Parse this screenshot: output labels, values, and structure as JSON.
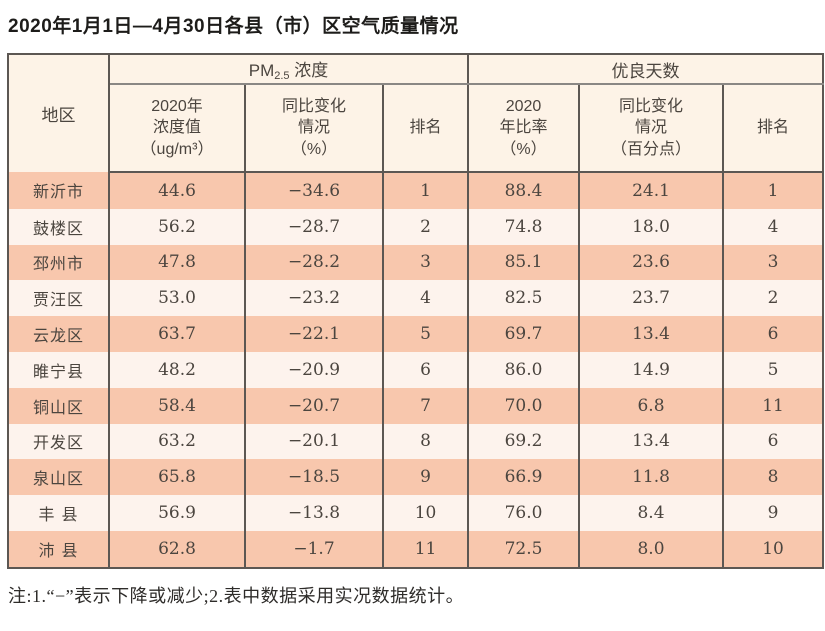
{
  "page": {
    "title": "2020年1月1日—4月30日各县（市）区空气质量情况",
    "note": "注:1.“−”表示下降或减少;2.表中数据采用实况数据统计。"
  },
  "colors": {
    "border": "#5c5753",
    "group_rule": "#8a8784",
    "stripe": "#f8c7ad",
    "stripe_light": "#fdf3ed",
    "header_bg": "#fdf3e7",
    "text": "#4b453f",
    "title_color": "#1d1c1a"
  },
  "table": {
    "corner_header": "地区",
    "pm_group": {
      "prefix": "PM",
      "sub": "2.5",
      "suffix": " 浓度"
    },
    "days_group_label": "优良天数",
    "columns": [
      "2020年\n浓度值\n（ug/m³）",
      "同比变化\n情况\n（%）",
      "排名",
      "2020\n年比率\n（%）",
      "同比变化\n情况\n（百分点）",
      "排名"
    ],
    "rows": [
      {
        "region": "新沂市",
        "pm_value": "44.6",
        "pm_change": "−34.6",
        "pm_rank": "1",
        "days_rate": "88.4",
        "days_change": "24.1",
        "days_rank": "1"
      },
      {
        "region": "鼓楼区",
        "pm_value": "56.2",
        "pm_change": "−28.7",
        "pm_rank": "2",
        "days_rate": "74.8",
        "days_change": "18.0",
        "days_rank": "4"
      },
      {
        "region": "邳州市",
        "pm_value": "47.8",
        "pm_change": "−28.2",
        "pm_rank": "3",
        "days_rate": "85.1",
        "days_change": "23.6",
        "days_rank": "3"
      },
      {
        "region": "贾汪区",
        "pm_value": "53.0",
        "pm_change": "−23.2",
        "pm_rank": "4",
        "days_rate": "82.5",
        "days_change": "23.7",
        "days_rank": "2"
      },
      {
        "region": "云龙区",
        "pm_value": "63.7",
        "pm_change": "−22.1",
        "pm_rank": "5",
        "days_rate": "69.7",
        "days_change": "13.4",
        "days_rank": "6"
      },
      {
        "region": "睢宁县",
        "pm_value": "48.2",
        "pm_change": "−20.9",
        "pm_rank": "6",
        "days_rate": "86.0",
        "days_change": "14.9",
        "days_rank": "5"
      },
      {
        "region": "铜山区",
        "pm_value": "58.4",
        "pm_change": "−20.7",
        "pm_rank": "7",
        "days_rate": "70.0",
        "days_change": "6.8",
        "days_rank": "11"
      },
      {
        "region": "开发区",
        "pm_value": "63.2",
        "pm_change": "−20.1",
        "pm_rank": "8",
        "days_rate": "69.2",
        "days_change": "13.4",
        "days_rank": "6"
      },
      {
        "region": "泉山区",
        "pm_value": "65.8",
        "pm_change": "−18.5",
        "pm_rank": "9",
        "days_rate": "66.9",
        "days_change": "11.8",
        "days_rank": "8"
      },
      {
        "region": "丰 县",
        "pm_value": "56.9",
        "pm_change": "−13.8",
        "pm_rank": "10",
        "days_rate": "76.0",
        "days_change": "8.4",
        "days_rank": "9"
      },
      {
        "region": "沛 县",
        "pm_value": "62.8",
        "pm_change": "−1.7",
        "pm_rank": "11",
        "days_rate": "72.5",
        "days_change": "8.0",
        "days_rank": "10"
      }
    ]
  }
}
